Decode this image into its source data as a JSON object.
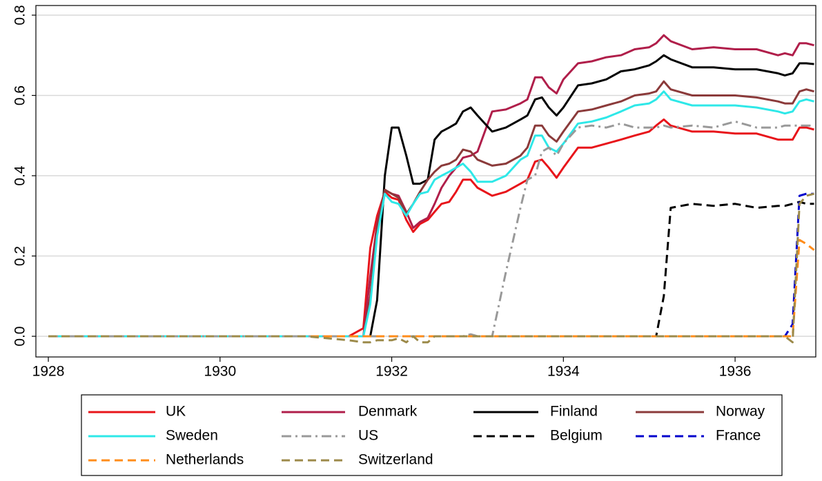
{
  "chart_data": {
    "type": "line",
    "x": [
      1928,
      1929,
      1930,
      1931,
      1931.5,
      1931.67,
      1931.75,
      1931.83,
      1931.92,
      1932,
      1932.08,
      1932.17,
      1932.25,
      1932.33,
      1932.42,
      1932.5,
      1932.58,
      1932.67,
      1932.75,
      1932.83,
      1932.92,
      1933,
      1933.17,
      1933.33,
      1933.5,
      1933.58,
      1933.67,
      1933.75,
      1933.83,
      1933.92,
      1934,
      1934.17,
      1934.33,
      1934.5,
      1934.67,
      1934.83,
      1935,
      1935.08,
      1935.17,
      1935.25,
      1935.5,
      1935.75,
      1936,
      1936.25,
      1936.5,
      1936.58,
      1936.67,
      1936.75,
      1936.83,
      1936.92
    ],
    "xlim": [
      1927.855,
      1936.94
    ],
    "xticks": [
      1928,
      1930,
      1932,
      1934,
      1936
    ],
    "ylim": [
      -0.0515,
      0.824
    ],
    "yticks": [
      {
        "value": 0,
        "label": "0.0"
      },
      0.2,
      0.4,
      0.6,
      0.8
    ],
    "grid": true,
    "legend": "bottom",
    "series": [
      {
        "name": "UK",
        "color": "#e8141a",
        "linestyle": "solid",
        "values": [
          0,
          0,
          0,
          0,
          0,
          0.02,
          0.22,
          0.3,
          0.36,
          0.345,
          0.34,
          0.29,
          0.26,
          0.28,
          0.29,
          0.31,
          0.33,
          0.335,
          0.36,
          0.39,
          0.39,
          0.37,
          0.35,
          0.36,
          0.38,
          0.39,
          0.435,
          0.44,
          0.42,
          0.395,
          0.42,
          0.47,
          0.47,
          0.48,
          0.49,
          0.5,
          0.51,
          0.525,
          0.54,
          0.525,
          0.51,
          0.51,
          0.505,
          0.505,
          0.49,
          0.49,
          0.49,
          0.52,
          0.52,
          0.515
        ]
      },
      {
        "name": "Denmark",
        "color": "#b01e4a",
        "linestyle": "solid",
        "values": [
          0,
          0,
          0,
          0,
          0,
          0,
          0.15,
          0.28,
          0.365,
          0.355,
          0.35,
          0.31,
          0.27,
          0.285,
          0.295,
          0.33,
          0.37,
          0.4,
          0.42,
          0.445,
          0.45,
          0.46,
          0.56,
          0.565,
          0.58,
          0.59,
          0.645,
          0.645,
          0.62,
          0.605,
          0.64,
          0.68,
          0.685,
          0.695,
          0.7,
          0.715,
          0.72,
          0.73,
          0.75,
          0.735,
          0.715,
          0.72,
          0.715,
          0.715,
          0.7,
          0.705,
          0.7,
          0.73,
          0.73,
          0.725
        ]
      },
      {
        "name": "Finland",
        "color": "#000000",
        "linestyle": "solid",
        "values": [
          0,
          0,
          0,
          0,
          0,
          0,
          0,
          0.09,
          0.4,
          0.52,
          0.52,
          0.45,
          0.38,
          0.38,
          0.39,
          0.49,
          0.51,
          0.52,
          0.53,
          0.56,
          0.57,
          0.55,
          0.51,
          0.52,
          0.54,
          0.55,
          0.59,
          0.595,
          0.57,
          0.55,
          0.57,
          0.625,
          0.63,
          0.64,
          0.66,
          0.665,
          0.675,
          0.685,
          0.7,
          0.69,
          0.67,
          0.67,
          0.665,
          0.665,
          0.655,
          0.65,
          0.655,
          0.68,
          0.68,
          0.678
        ]
      },
      {
        "name": "Norway",
        "color": "#8b3a3a",
        "linestyle": "solid",
        "values": [
          0,
          0,
          0,
          0,
          0,
          0,
          0.1,
          0.27,
          0.365,
          0.355,
          0.345,
          0.305,
          0.33,
          0.36,
          0.39,
          0.41,
          0.425,
          0.43,
          0.44,
          0.465,
          0.46,
          0.44,
          0.425,
          0.43,
          0.45,
          0.47,
          0.525,
          0.525,
          0.5,
          0.485,
          0.51,
          0.56,
          0.565,
          0.575,
          0.585,
          0.6,
          0.605,
          0.61,
          0.635,
          0.615,
          0.6,
          0.6,
          0.6,
          0.595,
          0.585,
          0.58,
          0.58,
          0.61,
          0.615,
          0.61
        ]
      },
      {
        "name": "Sweden",
        "color": "#2ee8e8",
        "linestyle": "solid",
        "values": [
          0,
          0,
          0,
          0,
          0,
          0,
          0.08,
          0.25,
          0.355,
          0.335,
          0.33,
          0.3,
          0.33,
          0.355,
          0.36,
          0.39,
          0.4,
          0.41,
          0.42,
          0.43,
          0.41,
          0.385,
          0.385,
          0.4,
          0.44,
          0.45,
          0.5,
          0.5,
          0.47,
          0.46,
          0.48,
          0.53,
          0.535,
          0.545,
          0.56,
          0.575,
          0.58,
          0.59,
          0.61,
          0.59,
          0.575,
          0.575,
          0.575,
          0.57,
          0.56,
          0.555,
          0.56,
          0.585,
          0.59,
          0.585
        ]
      },
      {
        "name": "US",
        "color": "#999999",
        "linestyle": "dashdot",
        "values": [
          0,
          0,
          0,
          0,
          0,
          0,
          0,
          0,
          0,
          0,
          0,
          0,
          0,
          0,
          0,
          0,
          0,
          0,
          0,
          0,
          0.005,
          0,
          0,
          0.16,
          0.32,
          0.39,
          0.4,
          0.46,
          0.47,
          0.45,
          0.48,
          0.52,
          0.525,
          0.52,
          0.53,
          0.52,
          0.52,
          0.52,
          0.525,
          0.52,
          0.525,
          0.52,
          0.535,
          0.52,
          0.52,
          0.525,
          0.525,
          0.525,
          0.525,
          0.525
        ]
      },
      {
        "name": "Belgium",
        "color": "#000000",
        "linestyle": "dashed",
        "values": [
          0,
          0,
          0,
          0,
          0,
          0,
          0,
          0,
          0,
          0,
          0,
          0,
          0,
          0,
          0,
          0,
          0,
          0,
          0,
          0,
          0,
          0,
          0,
          0,
          0,
          0,
          0,
          0,
          0,
          0,
          0,
          0,
          0,
          0,
          0,
          0,
          0,
          0,
          0.1,
          0.32,
          0.33,
          0.325,
          0.33,
          0.32,
          0.325,
          0.325,
          0.33,
          0.335,
          0.33,
          0.33
        ]
      },
      {
        "name": "France",
        "color": "#0000cc",
        "linestyle": "dashed",
        "values": [
          0,
          0,
          0,
          0,
          0,
          0,
          0,
          0,
          0,
          0,
          0,
          0,
          0,
          0,
          0,
          0,
          0,
          0,
          0,
          0,
          0,
          0,
          0,
          0,
          0,
          0,
          0,
          0,
          0,
          0,
          0,
          0,
          0,
          0,
          0,
          0,
          0,
          0,
          0,
          0,
          0,
          0,
          0,
          0,
          0,
          0,
          0.03,
          0.35,
          0.355,
          0.355
        ]
      },
      {
        "name": "Netherlands",
        "color": "#ff8c1a",
        "linestyle": "dashed",
        "values": [
          0,
          0,
          0,
          0,
          0,
          0,
          0,
          0,
          0,
          0,
          0,
          0,
          0,
          0,
          0,
          0,
          0,
          0,
          0,
          0,
          0,
          0,
          0,
          0,
          0,
          0,
          0,
          0,
          0,
          0,
          0,
          0,
          0,
          0,
          0,
          0,
          0,
          0,
          0,
          0,
          0,
          0,
          0,
          0,
          0,
          0,
          0,
          0.24,
          0.23,
          0.215
        ]
      },
      {
        "name": "Switzerland",
        "color": "#9c8a4a",
        "linestyle": "dashed",
        "values": [
          0,
          0,
          0,
          0,
          -0.01,
          -0.015,
          -0.015,
          -0.01,
          -0.01,
          -0.01,
          -0.005,
          -0.015,
          0,
          -0.015,
          -0.015,
          0,
          0,
          0,
          0,
          0,
          0,
          0,
          0,
          0,
          0,
          0,
          0,
          0,
          0,
          0,
          0,
          0,
          0,
          0,
          0,
          0,
          0,
          0,
          0,
          0,
          0,
          0,
          0,
          0,
          0,
          0,
          -0.015,
          0.33,
          0.35,
          0.355
        ]
      }
    ]
  }
}
